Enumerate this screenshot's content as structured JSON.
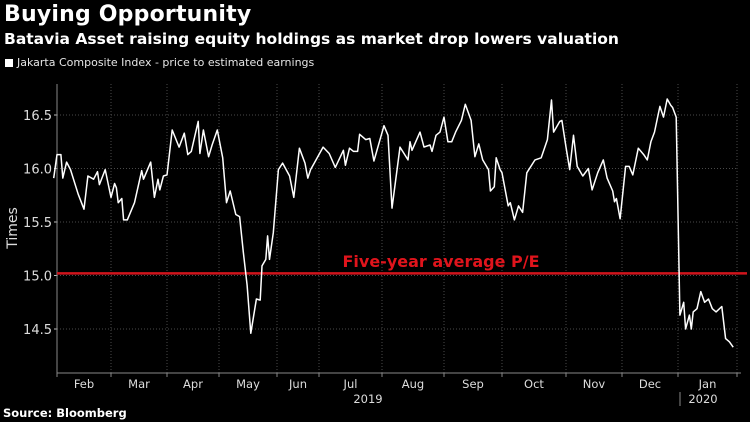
{
  "header": {
    "title": "Buying Opportunity",
    "subtitle": "Batavia Asset raising equity holdings as market drop lowers valuation"
  },
  "footer": {
    "source": "Source: Bloomberg"
  },
  "colors": {
    "background": "#000000",
    "series": "#ffffff",
    "reference_line": "#d0141c",
    "grid": "#555555"
  },
  "chart_data": {
    "type": "line",
    "title": "Buying Opportunity",
    "ylabel": "Times",
    "xlabel": "",
    "ylim": [
      14.1,
      16.8
    ],
    "yticks": [
      "14.5",
      "15.0",
      "15.5",
      "16.0",
      "16.5"
    ],
    "xticks": [
      "Feb",
      "Mar",
      "Apr",
      "May",
      "Jun",
      "Jul",
      "Aug",
      "Sep",
      "Oct",
      "Nov",
      "Dec",
      "Jan"
    ],
    "year_labels": [
      "2019",
      "2020"
    ],
    "grid": true,
    "legend": "top-left",
    "series": [
      {
        "name": "Jakarta Composite Index - price to estimated earnings",
        "points": [
          [
            "2019-01-30",
            15.91
          ],
          [
            "2019-02-01",
            16.13
          ],
          [
            "2019-02-03",
            16.13
          ],
          [
            "2019-02-04",
            15.91
          ],
          [
            "2019-02-06",
            16.06
          ],
          [
            "2019-02-08",
            15.99
          ],
          [
            "2019-02-12",
            15.76
          ],
          [
            "2019-02-15",
            15.62
          ],
          [
            "2019-02-17",
            15.93
          ],
          [
            "2019-02-20",
            15.9
          ],
          [
            "2019-02-22",
            15.97
          ],
          [
            "2019-02-23",
            15.85
          ],
          [
            "2019-02-26",
            15.99
          ],
          [
            "2019-03-01",
            15.73
          ],
          [
            "2019-03-03",
            15.86
          ],
          [
            "2019-03-04",
            15.82
          ],
          [
            "2019-03-05",
            15.68
          ],
          [
            "2019-03-07",
            15.72
          ],
          [
            "2019-03-08",
            15.52
          ],
          [
            "2019-03-10",
            15.52
          ],
          [
            "2019-03-14",
            15.68
          ],
          [
            "2019-03-18",
            15.98
          ],
          [
            "2019-03-19",
            15.9
          ],
          [
            "2019-03-23",
            16.06
          ],
          [
            "2019-03-25",
            15.73
          ],
          [
            "2019-03-27",
            15.9
          ],
          [
            "2019-03-28",
            15.8
          ],
          [
            "2019-03-30",
            15.93
          ],
          [
            "2019-04-01",
            15.94
          ],
          [
            "2019-04-04",
            16.36
          ],
          [
            "2019-04-08",
            16.2
          ],
          [
            "2019-04-11",
            16.33
          ],
          [
            "2019-04-13",
            16.13
          ],
          [
            "2019-04-15",
            16.16
          ],
          [
            "2019-04-19",
            16.44
          ],
          [
            "2019-04-20",
            16.14
          ],
          [
            "2019-04-22",
            16.36
          ],
          [
            "2019-04-25",
            16.11
          ],
          [
            "2019-04-27",
            16.22
          ],
          [
            "2019-04-30",
            16.36
          ],
          [
            "2019-05-03",
            16.1
          ],
          [
            "2019-05-05",
            15.68
          ],
          [
            "2019-05-07",
            15.79
          ],
          [
            "2019-05-10",
            15.57
          ],
          [
            "2019-05-12",
            15.55
          ],
          [
            "2019-05-14",
            15.22
          ],
          [
            "2019-05-16",
            14.91
          ],
          [
            "2019-05-18",
            14.46
          ],
          [
            "2019-05-21",
            14.78
          ],
          [
            "2019-05-23",
            14.77
          ],
          [
            "2019-05-24",
            15.09
          ],
          [
            "2019-05-26",
            15.15
          ],
          [
            "2019-05-27",
            15.37
          ],
          [
            "2019-05-28",
            15.15
          ],
          [
            "2019-05-30",
            15.4
          ],
          [
            "2019-06-02",
            15.99
          ],
          [
            "2019-06-05",
            16.05
          ],
          [
            "2019-06-10",
            15.93
          ],
          [
            "2019-06-13",
            15.73
          ],
          [
            "2019-06-17",
            16.19
          ],
          [
            "2019-06-21",
            16.05
          ],
          [
            "2019-06-23",
            15.91
          ],
          [
            "2019-06-25",
            15.99
          ],
          [
            "2019-06-28",
            16.06
          ],
          [
            "2019-07-03",
            16.2
          ],
          [
            "2019-07-06",
            16.14
          ],
          [
            "2019-07-09",
            16.01
          ],
          [
            "2019-07-13",
            16.17
          ],
          [
            "2019-07-14",
            16.03
          ],
          [
            "2019-07-16",
            16.19
          ],
          [
            "2019-07-18",
            16.16
          ],
          [
            "2019-07-20",
            16.16
          ],
          [
            "2019-07-21",
            16.32
          ],
          [
            "2019-07-24",
            16.27
          ],
          [
            "2019-07-26",
            16.28
          ],
          [
            "2019-07-28",
            16.07
          ],
          [
            "2019-08-02",
            16.4
          ],
          [
            "2019-08-04",
            16.31
          ],
          [
            "2019-08-06",
            15.63
          ],
          [
            "2019-08-10",
            16.2
          ],
          [
            "2019-08-14",
            16.08
          ],
          [
            "2019-08-15",
            16.25
          ],
          [
            "2019-08-16",
            16.17
          ],
          [
            "2019-08-20",
            16.34
          ],
          [
            "2019-08-22",
            16.2
          ],
          [
            "2019-08-25",
            16.22
          ],
          [
            "2019-08-26",
            16.16
          ],
          [
            "2019-08-28",
            16.31
          ],
          [
            "2019-08-30",
            16.34
          ],
          [
            "2019-09-01",
            16.48
          ],
          [
            "2019-09-03",
            16.25
          ],
          [
            "2019-09-05",
            16.25
          ],
          [
            "2019-09-07",
            16.34
          ],
          [
            "2019-09-10",
            16.45
          ],
          [
            "2019-09-12",
            16.6
          ],
          [
            "2019-09-15",
            16.45
          ],
          [
            "2019-09-17",
            16.11
          ],
          [
            "2019-09-19",
            16.23
          ],
          [
            "2019-09-21",
            16.08
          ],
          [
            "2019-09-24",
            15.99
          ],
          [
            "2019-09-25",
            15.79
          ],
          [
            "2019-09-27",
            15.83
          ],
          [
            "2019-09-28",
            16.1
          ],
          [
            "2019-09-30",
            15.99
          ],
          [
            "2019-10-01",
            15.96
          ],
          [
            "2019-10-04",
            15.65
          ],
          [
            "2019-10-05",
            15.68
          ],
          [
            "2019-10-07",
            15.52
          ],
          [
            "2019-10-09",
            15.65
          ],
          [
            "2019-10-11",
            15.59
          ],
          [
            "2019-10-13",
            15.96
          ],
          [
            "2019-10-17",
            16.08
          ],
          [
            "2019-10-20",
            16.1
          ],
          [
            "2019-10-23",
            16.27
          ],
          [
            "2019-10-25",
            16.64
          ],
          [
            "2019-10-26",
            16.34
          ],
          [
            "2019-10-29",
            16.44
          ],
          [
            "2019-10-30",
            16.45
          ],
          [
            "2019-11-01",
            16.2
          ],
          [
            "2019-11-03",
            15.99
          ],
          [
            "2019-11-05",
            16.31
          ],
          [
            "2019-11-07",
            16.02
          ],
          [
            "2019-11-10",
            15.93
          ],
          [
            "2019-11-13",
            16.0
          ],
          [
            "2019-11-15",
            15.8
          ],
          [
            "2019-11-18",
            15.96
          ],
          [
            "2019-11-21",
            16.08
          ],
          [
            "2019-11-23",
            15.91
          ],
          [
            "2019-11-26",
            15.79
          ],
          [
            "2019-11-27",
            15.69
          ],
          [
            "2019-11-28",
            15.72
          ],
          [
            "2019-11-30",
            15.53
          ],
          [
            "2019-12-03",
            16.02
          ],
          [
            "2019-12-05",
            16.02
          ],
          [
            "2019-12-07",
            15.94
          ],
          [
            "2019-12-10",
            16.19
          ],
          [
            "2019-12-13",
            16.13
          ],
          [
            "2019-12-15",
            16.08
          ],
          [
            "2019-12-17",
            16.25
          ],
          [
            "2019-12-19",
            16.34
          ],
          [
            "2019-12-22",
            16.58
          ],
          [
            "2019-12-24",
            16.48
          ],
          [
            "2019-12-26",
            16.65
          ],
          [
            "2019-12-28",
            16.59
          ],
          [
            "2019-12-29",
            16.57
          ],
          [
            "2019-12-31",
            16.48
          ],
          [
            "2020-01-02",
            14.63
          ],
          [
            "2020-01-04",
            14.75
          ],
          [
            "2020-01-05",
            14.5
          ],
          [
            "2020-01-07",
            14.63
          ],
          [
            "2020-01-08",
            14.5
          ],
          [
            "2020-01-09",
            14.66
          ],
          [
            "2020-01-11",
            14.69
          ],
          [
            "2020-01-13",
            14.85
          ],
          [
            "2020-01-15",
            14.75
          ],
          [
            "2020-01-17",
            14.78
          ],
          [
            "2020-01-19",
            14.69
          ],
          [
            "2020-01-21",
            14.66
          ],
          [
            "2020-01-24",
            14.71
          ],
          [
            "2020-01-26",
            14.41
          ],
          [
            "2020-01-28",
            14.38
          ],
          [
            "2020-01-30",
            14.33
          ]
        ]
      }
    ],
    "reference_line": {
      "label": "Five-year average P/E",
      "value": 15.02
    }
  }
}
